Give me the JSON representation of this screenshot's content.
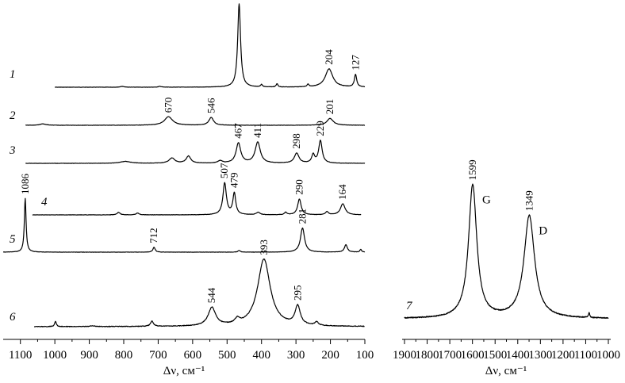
{
  "chart_data": [
    {
      "type": "line",
      "xlabel": "Δν, см⁻¹",
      "xlim": [
        1150,
        100
      ],
      "x_ticks": [
        1100,
        1000,
        900,
        800,
        700,
        600,
        500,
        400,
        300,
        200,
        100
      ],
      "series": [
        {
          "name": "1",
          "range": [
            1000,
            100
          ],
          "peaks": [
            {
              "x": 465,
              "h": 1.0,
              "w": 5
            },
            {
              "x": 204,
              "h": 0.22,
              "w": 13
            },
            {
              "x": 127,
              "h": 0.15,
              "w": 4
            },
            {
              "x": 355,
              "h": 0.04,
              "w": 3
            },
            {
              "x": 400,
              "h": 0.03,
              "w": 3
            },
            {
              "x": 265,
              "h": 0.03,
              "w": 3
            },
            {
              "x": 805,
              "h": 0.01,
              "w": 6
            },
            {
              "x": 695,
              "h": 0.01,
              "w": 5
            }
          ],
          "labels": [
            {
              "text": "204",
              "x": 204
            },
            {
              "text": "127",
              "x": 127
            }
          ]
        },
        {
          "name": "2",
          "range": [
            1085,
            100
          ],
          "peaks": [
            {
              "x": 670,
              "h": 0.6,
              "w": 14
            },
            {
              "x": 546,
              "h": 0.55,
              "w": 8
            },
            {
              "x": 201,
              "h": 0.48,
              "w": 11
            },
            {
              "x": 1035,
              "h": 0.1,
              "w": 10
            }
          ],
          "labels": [
            {
              "text": "670",
              "x": 670
            },
            {
              "text": "546",
              "x": 546
            },
            {
              "text": "201",
              "x": 201
            }
          ]
        },
        {
          "name": "3",
          "range": [
            1085,
            100
          ],
          "peaks": [
            {
              "x": 467,
              "h": 0.85,
              "w": 8
            },
            {
              "x": 411,
              "h": 0.88,
              "w": 9
            },
            {
              "x": 298,
              "h": 0.42,
              "w": 8
            },
            {
              "x": 229,
              "h": 0.95,
              "w": 6
            },
            {
              "x": 250,
              "h": 0.35,
              "w": 5
            },
            {
              "x": 612,
              "h": 0.3,
              "w": 8
            },
            {
              "x": 660,
              "h": 0.22,
              "w": 10
            },
            {
              "x": 795,
              "h": 0.08,
              "w": 18
            },
            {
              "x": 520,
              "h": 0.1,
              "w": 8
            }
          ],
          "labels": [
            {
              "text": "467",
              "x": 467
            },
            {
              "text": "411",
              "x": 411
            },
            {
              "text": "298",
              "x": 298
            },
            {
              "text": "229",
              "x": 229
            }
          ]
        },
        {
          "name": "4",
          "range": [
            1065,
            110
          ],
          "peaks": [
            {
              "x": 507,
              "h": 1.0,
              "w": 6
            },
            {
              "x": 479,
              "h": 0.68,
              "w": 5
            },
            {
              "x": 290,
              "h": 0.5,
              "w": 6
            },
            {
              "x": 164,
              "h": 0.35,
              "w": 8
            },
            {
              "x": 410,
              "h": 0.08,
              "w": 6
            },
            {
              "x": 210,
              "h": 0.1,
              "w": 5
            },
            {
              "x": 815,
              "h": 0.08,
              "w": 5
            },
            {
              "x": 760,
              "h": 0.06,
              "w": 5
            },
            {
              "x": 330,
              "h": 0.08,
              "w": 4
            }
          ],
          "labels": [
            {
              "text": "507",
              "x": 507
            },
            {
              "text": "479",
              "x": 479
            },
            {
              "text": "290",
              "x": 290
            },
            {
              "text": "164",
              "x": 164
            }
          ]
        },
        {
          "name": "5",
          "range": [
            1150,
            100
          ],
          "peaks": [
            {
              "x": 1086,
              "h": 1.0,
              "w": 3
            },
            {
              "x": 712,
              "h": 0.09,
              "w": 4
            },
            {
              "x": 281,
              "h": 0.45,
              "w": 7
            },
            {
              "x": 155,
              "h": 0.14,
              "w": 5
            },
            {
              "x": 465,
              "h": 0.03,
              "w": 4
            },
            {
              "x": 112,
              "h": 0.05,
              "w": 3
            }
          ],
          "labels": [
            {
              "text": "1086",
              "x": 1086
            },
            {
              "text": "712",
              "x": 712
            },
            {
              "text": "281",
              "x": 281
            }
          ]
        },
        {
          "name": "6",
          "range": [
            1060,
            100
          ],
          "peaks": [
            {
              "x": 393,
              "h": 1.0,
              "w": 22
            },
            {
              "x": 544,
              "h": 0.27,
              "w": 13
            },
            {
              "x": 295,
              "h": 0.28,
              "w": 9
            },
            {
              "x": 998,
              "h": 0.08,
              "w": 3
            },
            {
              "x": 718,
              "h": 0.08,
              "w": 5
            },
            {
              "x": 470,
              "h": 0.07,
              "w": 8
            },
            {
              "x": 240,
              "h": 0.05,
              "w": 6
            },
            {
              "x": 890,
              "h": 0.01,
              "w": 8
            }
          ],
          "labels": [
            {
              "text": "393",
              "x": 393
            },
            {
              "text": "544",
              "x": 544
            },
            {
              "text": "295",
              "x": 295
            }
          ]
        }
      ]
    },
    {
      "type": "line",
      "xlabel": "Δν, см⁻¹",
      "xlim": [
        1900,
        1000
      ],
      "x_ticks": [
        1900,
        1800,
        1700,
        1600,
        1500,
        1400,
        1300,
        1200,
        1100,
        1000
      ],
      "series": [
        {
          "name": "7",
          "range": [
            1900,
            1000
          ],
          "peaks": [
            {
              "x": 1599,
              "h": 1.0,
              "w": 22
            },
            {
              "x": 1349,
              "h": 0.77,
              "w": 28
            },
            {
              "x": 1085,
              "h": 0.04,
              "w": 3
            }
          ],
          "labels": [
            {
              "text": "1599",
              "x": 1599
            },
            {
              "text": "1349",
              "x": 1349
            }
          ],
          "band_labels": [
            {
              "text": "G",
              "x": 1599
            },
            {
              "text": "D",
              "x": 1349
            }
          ]
        }
      ]
    }
  ]
}
